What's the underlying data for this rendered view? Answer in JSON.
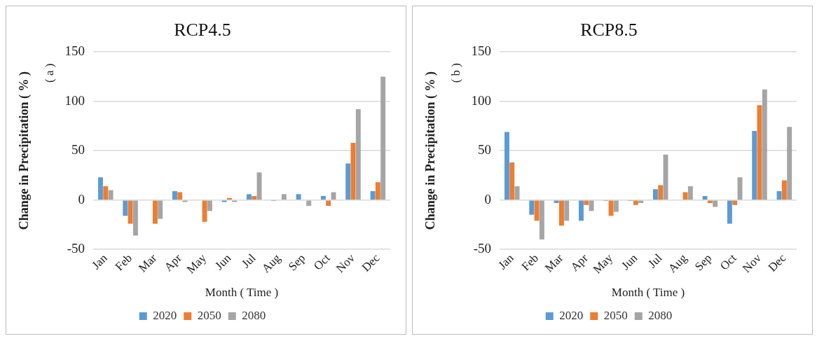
{
  "chart_data": [
    {
      "type": "bar",
      "title": "RCP4.5",
      "xlabel": "Month ( Time )",
      "ylabel": "Change in Precipitation ( % )",
      "annotations": [
        "( a )"
      ],
      "categories": [
        "Jan",
        "Feb",
        "Mar",
        "Apr",
        "May",
        "Jun",
        "Jul",
        "Aug",
        "Sep",
        "Oct",
        "Nov",
        "Dec"
      ],
      "series": [
        {
          "name": "2020",
          "color": "#5b9bd5",
          "values": [
            23,
            -16,
            0,
            9,
            0,
            -2,
            6,
            -1,
            6,
            4,
            37,
            9
          ]
        },
        {
          "name": "2050",
          "color": "#ed7d31",
          "values": [
            14,
            -24,
            -24,
            8,
            -22,
            2,
            4,
            0,
            0,
            -6,
            58,
            18
          ]
        },
        {
          "name": "2080",
          "color": "#a5a5a5",
          "values": [
            10,
            -36,
            -19,
            -2,
            -11,
            -2,
            28,
            6,
            -6,
            8,
            92,
            125
          ]
        }
      ],
      "ylim": [
        -50,
        150
      ],
      "yticks": [
        -50,
        0,
        50,
        100,
        150
      ],
      "grid": "y",
      "legend": "bottom"
    },
    {
      "type": "bar",
      "title": "RCP8.5",
      "xlabel": "Month ( Time )",
      "ylabel": "Change in Precipitation ( % )",
      "annotations": [
        "( b )"
      ],
      "categories": [
        "Jan",
        "Feb",
        "Mar",
        "Apr",
        "May",
        "Jun",
        "Jul",
        "Aug",
        "Sep",
        "Oct",
        "Nov",
        "Dec"
      ],
      "series": [
        {
          "name": "2020",
          "color": "#5b9bd5",
          "values": [
            69,
            -15,
            -3,
            -21,
            -1,
            -1,
            11,
            0,
            4,
            -24,
            70,
            9
          ]
        },
        {
          "name": "2050",
          "color": "#ed7d31",
          "values": [
            38,
            -21,
            -26,
            -5,
            -16,
            -5,
            15,
            8,
            -3,
            -5,
            96,
            20
          ]
        },
        {
          "name": "2080",
          "color": "#a5a5a5",
          "values": [
            14,
            -40,
            -21,
            -11,
            -12,
            -3,
            46,
            14,
            -7,
            23,
            112,
            74
          ]
        }
      ],
      "ylim": [
        -50,
        150
      ],
      "yticks": [
        -50,
        0,
        50,
        100,
        150
      ],
      "grid": "y",
      "legend": "bottom"
    }
  ]
}
